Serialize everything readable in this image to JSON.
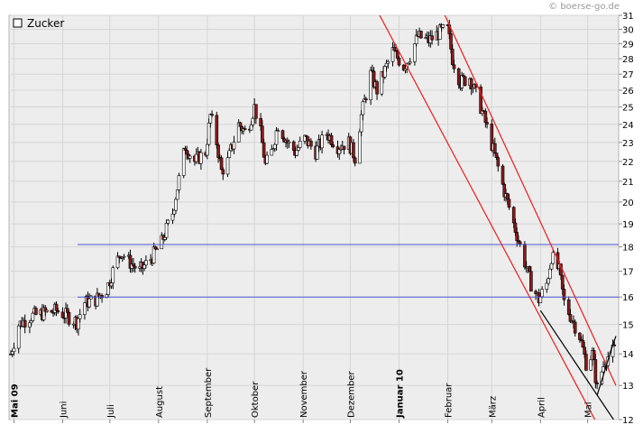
{
  "watermark": "© boerse-go.de",
  "chart_data": {
    "type": "candlestick",
    "title": "Zucker",
    "legend_position": "top-left",
    "grid": true,
    "ylim": [
      12,
      31
    ],
    "y_ticks": [
      12,
      13,
      14,
      15,
      16,
      17,
      18,
      19,
      20,
      21,
      22,
      23,
      24,
      25,
      26,
      27,
      28,
      29,
      30,
      31
    ],
    "y_scale": "log",
    "x_range": [
      "2009-04-29",
      "2010-05-19"
    ],
    "x_ticks": [
      {
        "label": "Mai 09",
        "date": "2009-05-01",
        "bold": true
      },
      {
        "label": "Juni",
        "date": "2009-06-01",
        "bold": false
      },
      {
        "label": "Juli",
        "date": "2009-07-01",
        "bold": false
      },
      {
        "label": "August",
        "date": "2009-08-01",
        "bold": false
      },
      {
        "label": "September",
        "date": "2009-09-01",
        "bold": false
      },
      {
        "label": "Oktober",
        "date": "2009-10-01",
        "bold": false
      },
      {
        "label": "November",
        "date": "2009-11-01",
        "bold": false
      },
      {
        "label": "Dezember",
        "date": "2009-12-01",
        "bold": false
      },
      {
        "label": "Januar 10",
        "date": "2010-01-01",
        "bold": true
      },
      {
        "label": "Februar",
        "date": "2010-02-01",
        "bold": false
      },
      {
        "label": "März",
        "date": "2010-03-01",
        "bold": false
      },
      {
        "label": "April",
        "date": "2010-04-01",
        "bold": false
      },
      {
        "label": "Mai",
        "date": "2010-05-01",
        "bold": false
      }
    ],
    "close_path": [
      [
        "2009-04-29",
        14.0
      ],
      [
        "2009-05-04",
        15.0
      ],
      [
        "2009-05-12",
        15.3
      ],
      [
        "2009-05-20",
        15.4
      ],
      [
        "2009-05-28",
        15.5
      ],
      [
        "2009-06-04",
        15.3
      ],
      [
        "2009-06-10",
        15.1
      ],
      [
        "2009-06-15",
        15.8
      ],
      [
        "2009-06-22",
        15.9
      ],
      [
        "2009-06-29",
        16.3
      ],
      [
        "2009-07-03",
        17.0
      ],
      [
        "2009-07-08",
        17.8
      ],
      [
        "2009-07-13",
        17.4
      ],
      [
        "2009-07-20",
        17.0
      ],
      [
        "2009-07-27",
        17.5
      ],
      [
        "2009-08-03",
        18.2
      ],
      [
        "2009-08-10",
        19.5
      ],
      [
        "2009-08-15",
        21.5
      ],
      [
        "2009-08-18",
        22.8
      ],
      [
        "2009-08-24",
        22.0
      ],
      [
        "2009-08-31",
        22.5
      ],
      [
        "2009-09-03",
        24.5
      ],
      [
        "2009-09-07",
        23.0
      ],
      [
        "2009-09-10",
        21.5
      ],
      [
        "2009-09-14",
        22.0
      ],
      [
        "2009-09-21",
        24.0
      ],
      [
        "2009-09-26",
        23.5
      ],
      [
        "2009-10-01",
        25.0
      ],
      [
        "2009-10-05",
        23.5
      ],
      [
        "2009-10-08",
        21.8
      ],
      [
        "2009-10-12",
        22.5
      ],
      [
        "2009-10-16",
        24.0
      ],
      [
        "2009-10-22",
        23.0
      ],
      [
        "2009-10-27",
        22.5
      ],
      [
        "2009-11-02",
        23.2
      ],
      [
        "2009-11-09",
        22.5
      ],
      [
        "2009-11-16",
        23.5
      ],
      [
        "2009-11-23",
        22.8
      ],
      [
        "2009-11-30",
        23.0
      ],
      [
        "2009-12-04",
        22.2
      ],
      [
        "2009-12-08",
        24.5
      ],
      [
        "2009-12-14",
        27.0
      ],
      [
        "2009-12-18",
        26.0
      ],
      [
        "2009-12-28",
        28.5
      ],
      [
        "2010-01-04",
        27.5
      ],
      [
        "2010-01-08",
        28.2
      ],
      [
        "2010-01-13",
        29.5
      ],
      [
        "2010-01-20",
        29.2
      ],
      [
        "2010-01-27",
        29.8
      ],
      [
        "2010-02-01",
        30.0
      ],
      [
        "2010-02-04",
        28.0
      ],
      [
        "2010-02-09",
        26.5
      ],
      [
        "2010-02-15",
        26.8
      ],
      [
        "2010-02-22",
        25.0
      ],
      [
        "2010-02-26",
        23.8
      ],
      [
        "2010-03-04",
        22.0
      ],
      [
        "2010-03-09",
        20.5
      ],
      [
        "2010-03-15",
        19.0
      ],
      [
        "2010-03-20",
        17.8
      ],
      [
        "2010-03-26",
        16.5
      ],
      [
        "2010-03-31",
        15.9
      ],
      [
        "2010-04-05",
        16.5
      ],
      [
        "2010-04-08",
        17.6
      ],
      [
        "2010-04-13",
        17.0
      ],
      [
        "2010-04-16",
        15.8
      ],
      [
        "2010-04-21",
        15.2
      ],
      [
        "2010-04-26",
        14.6
      ],
      [
        "2010-04-30",
        13.7
      ],
      [
        "2010-05-04",
        14.0
      ],
      [
        "2010-05-07",
        12.9
      ],
      [
        "2010-05-12",
        13.8
      ],
      [
        "2010-05-19",
        14.2
      ]
    ],
    "horizontal_lines": [
      {
        "value": 16.0,
        "color": "#4b55d0"
      },
      {
        "value": 18.1,
        "color": "#4b55d0"
      }
    ],
    "trend_lines": [
      {
        "color": "#ee1c1c",
        "points": [
          [
            "2009-12-16",
            31.8
          ],
          [
            "2010-05-08",
            11.8
          ]
        ]
      },
      {
        "color": "#ee1c1c",
        "points": [
          [
            "2010-01-27",
            31.8
          ],
          [
            "2010-05-19",
            13.0
          ]
        ]
      },
      {
        "color": "#000000",
        "points": [
          [
            "2010-04-01",
            15.5
          ],
          [
            "2010-05-19",
            11.9
          ]
        ]
      },
      {
        "color": "#000000",
        "points": [
          [
            "2010-05-07",
            12.7
          ],
          [
            "2010-05-17",
            14.3
          ]
        ]
      },
      {
        "color": "#000000",
        "points": [
          [
            "2010-05-15",
            14.0
          ],
          [
            "2010-05-19",
            14.6
          ]
        ]
      }
    ],
    "colors": {
      "plot_bg": "#ededed",
      "grid": "#d6d6d6",
      "up_candle": "#ffffff",
      "down_candle": "#8b1a1a",
      "wick": "#000000",
      "resistance": "#4b55d0",
      "channel": "#ee1c1c"
    }
  }
}
